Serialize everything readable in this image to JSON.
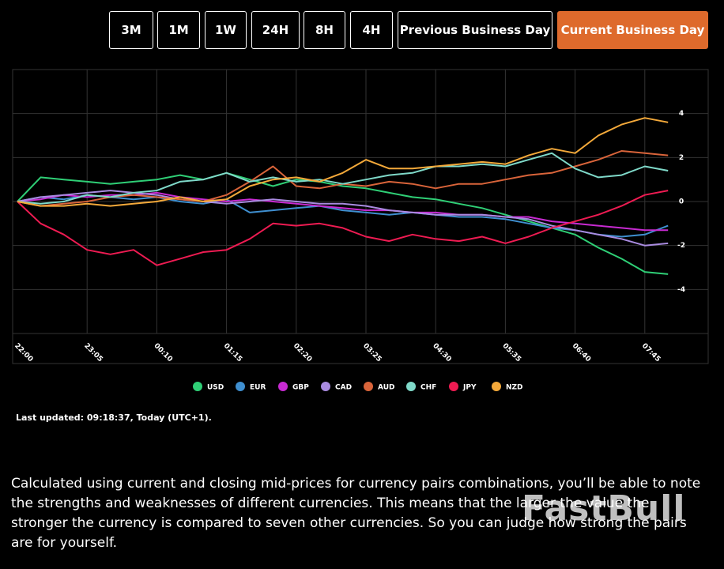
{
  "buttons": [
    {
      "label": "3M",
      "active": false
    },
    {
      "label": "1M",
      "active": false
    },
    {
      "label": "1W",
      "active": false
    },
    {
      "label": "24H",
      "active": false
    },
    {
      "label": "8H",
      "active": false
    },
    {
      "label": "4H",
      "active": false
    },
    {
      "label": "Previous Business Day",
      "active": false
    },
    {
      "label": "Current Business Day",
      "active": true
    }
  ],
  "chart_data": {
    "type": "line",
    "categories": [
      "22:00",
      null,
      null,
      "23:05",
      null,
      null,
      "00:10",
      null,
      null,
      "01:15",
      null,
      null,
      "02:20",
      null,
      null,
      "03:25",
      null,
      null,
      "04:30",
      null,
      null,
      "05:35",
      null,
      null,
      "06:40",
      null,
      null,
      "07:45",
      null
    ],
    "ylim": [
      -6,
      6
    ],
    "yticks": [
      -4,
      -2,
      0,
      2,
      4
    ],
    "grid": true,
    "legend": "bottom",
    "series": [
      {
        "name": "USD",
        "color": "#2fcf76",
        "values": [
          0,
          1.1,
          1.0,
          0.9,
          0.8,
          0.9,
          1.0,
          1.2,
          1.0,
          1.3,
          1.0,
          0.7,
          1.0,
          0.9,
          0.7,
          0.6,
          0.4,
          0.2,
          0.1,
          -0.1,
          -0.3,
          -0.6,
          -0.9,
          -1.2,
          -1.5,
          -2.1,
          -2.6,
          -3.2,
          -3.3
        ]
      },
      {
        "name": "EUR",
        "color": "#3f8fd0",
        "values": [
          0,
          0.2,
          0.1,
          0.3,
          0.2,
          0.1,
          0.2,
          0.0,
          -0.1,
          0.1,
          -0.5,
          -0.4,
          -0.3,
          -0.2,
          -0.4,
          -0.5,
          -0.6,
          -0.5,
          -0.6,
          -0.7,
          -0.7,
          -0.8,
          -1.0,
          -1.2,
          -1.3,
          -1.5,
          -1.6,
          -1.5,
          -1.1
        ]
      },
      {
        "name": "GBP",
        "color": "#c72ad1",
        "values": [
          0,
          0.1,
          0.3,
          0.2,
          0.3,
          0.3,
          0.4,
          0.2,
          0.1,
          0.0,
          0.1,
          0.0,
          -0.1,
          -0.2,
          -0.3,
          -0.4,
          -0.4,
          -0.5,
          -0.5,
          -0.6,
          -0.6,
          -0.7,
          -0.7,
          -0.9,
          -1.0,
          -1.1,
          -1.2,
          -1.3,
          -1.3
        ]
      },
      {
        "name": "CAD",
        "color": "#a98be0",
        "values": [
          0,
          0.2,
          0.3,
          0.4,
          0.5,
          0.4,
          0.3,
          0.1,
          0.0,
          -0.1,
          0.0,
          0.1,
          0.0,
          -0.1,
          -0.1,
          -0.2,
          -0.4,
          -0.5,
          -0.6,
          -0.6,
          -0.6,
          -0.7,
          -0.8,
          -1.1,
          -1.3,
          -1.5,
          -1.7,
          -2.0,
          -1.9
        ]
      },
      {
        "name": "AUD",
        "color": "#d9643a",
        "values": [
          0,
          -0.2,
          -0.1,
          0.0,
          0.2,
          0.3,
          0.2,
          0.1,
          0.0,
          0.3,
          0.9,
          1.6,
          0.7,
          0.6,
          0.8,
          0.7,
          0.9,
          0.8,
          0.6,
          0.8,
          0.8,
          1.0,
          1.2,
          1.3,
          1.6,
          1.9,
          2.3,
          2.2,
          2.1
        ]
      },
      {
        "name": "CHF",
        "color": "#7fd9c9",
        "values": [
          0,
          -0.1,
          0.0,
          0.3,
          0.2,
          0.4,
          0.5,
          0.9,
          1.0,
          1.3,
          0.9,
          1.1,
          0.9,
          1.0,
          0.8,
          1.0,
          1.2,
          1.3,
          1.6,
          1.6,
          1.7,
          1.6,
          1.9,
          2.2,
          1.5,
          1.1,
          1.2,
          1.6,
          1.4
        ]
      },
      {
        "name": "JPY",
        "color": "#ee1b52",
        "values": [
          0,
          -1.0,
          -1.5,
          -2.2,
          -2.4,
          -2.2,
          -2.9,
          -2.6,
          -2.3,
          -2.2,
          -1.7,
          -1.0,
          -1.1,
          -1.0,
          -1.2,
          -1.6,
          -1.8,
          -1.5,
          -1.7,
          -1.8,
          -1.6,
          -1.9,
          -1.6,
          -1.2,
          -0.9,
          -0.6,
          -0.2,
          0.3,
          0.5
        ]
      },
      {
        "name": "NZD",
        "color": "#f4a93a",
        "values": [
          0,
          -0.2,
          -0.2,
          -0.1,
          -0.2,
          -0.1,
          0.0,
          0.2,
          0.0,
          0.1,
          0.7,
          1.0,
          1.1,
          0.9,
          1.3,
          1.9,
          1.5,
          1.5,
          1.6,
          1.7,
          1.8,
          1.7,
          2.1,
          2.4,
          2.2,
          3.0,
          3.5,
          3.8,
          3.6
        ]
      }
    ]
  },
  "last_updated": "Last updated: 09:18:37, Today (UTC+1).",
  "description": "Calculated using current and closing mid-prices for currency pairs combinations, you’ll be able to note the strengths and weaknesses of different currencies. This means that the larger the value the stronger the currency is compared to seven other currencies. So you can judge how strong the pairs are for yourself.",
  "watermark": "FastBull"
}
